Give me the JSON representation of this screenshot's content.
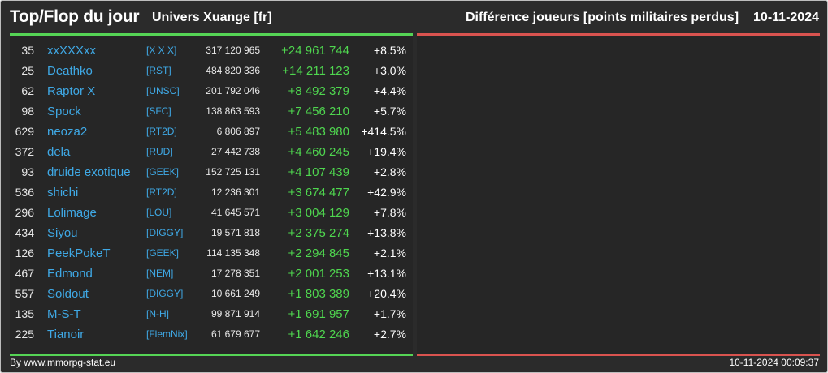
{
  "header": {
    "title": "Top/Flop du jour",
    "universe": "Univers Xuange [fr]",
    "category": "Différence joueurs [points militaires perdus]",
    "date": "10-11-2024"
  },
  "top_rows": [
    {
      "rank": "35",
      "name": "xxXXXxx",
      "alliance": "[X X X]",
      "points": "317 120 965",
      "diff": "+24 961 744",
      "pct": "+8.5%"
    },
    {
      "rank": "25",
      "name": "Deathko",
      "alliance": "[RST]",
      "points": "484 820 336",
      "diff": "+14 211 123",
      "pct": "+3.0%"
    },
    {
      "rank": "62",
      "name": "Raptor X",
      "alliance": "[UNSC]",
      "points": "201 792 046",
      "diff": "+8 492 379",
      "pct": "+4.4%"
    },
    {
      "rank": "98",
      "name": "Spock",
      "alliance": "[SFC]",
      "points": "138 863 593",
      "diff": "+7 456 210",
      "pct": "+5.7%"
    },
    {
      "rank": "629",
      "name": "neoza2",
      "alliance": "[RT2D]",
      "points": "6 806 897",
      "diff": "+5 483 980",
      "pct": "+414.5%"
    },
    {
      "rank": "372",
      "name": "dela",
      "alliance": "[RUD]",
      "points": "27 442 738",
      "diff": "+4 460 245",
      "pct": "+19.4%"
    },
    {
      "rank": "93",
      "name": "druide exotique",
      "alliance": "[GEEK]",
      "points": "152 725 131",
      "diff": "+4 107 439",
      "pct": "+2.8%"
    },
    {
      "rank": "536",
      "name": "shichi",
      "alliance": "[RT2D]",
      "points": "12 236 301",
      "diff": "+3 674 477",
      "pct": "+42.9%"
    },
    {
      "rank": "296",
      "name": "Lolimage",
      "alliance": "[LOU]",
      "points": "41 645 571",
      "diff": "+3 004 129",
      "pct": "+7.8%"
    },
    {
      "rank": "434",
      "name": "Siyou",
      "alliance": "[DIGGY]",
      "points": "19 571 818",
      "diff": "+2 375 274",
      "pct": "+13.8%"
    },
    {
      "rank": "126",
      "name": "PeekPokeT",
      "alliance": "[GEEK]",
      "points": "114 135 348",
      "diff": "+2 294 845",
      "pct": "+2.1%"
    },
    {
      "rank": "467",
      "name": "Edmond",
      "alliance": "[NEM]",
      "points": "17 278 351",
      "diff": "+2 001 253",
      "pct": "+13.1%"
    },
    {
      "rank": "557",
      "name": "Soldout",
      "alliance": "[DIGGY]",
      "points": "10 661 249",
      "diff": "+1 803 389",
      "pct": "+20.4%"
    },
    {
      "rank": "135",
      "name": "M-S-T",
      "alliance": "[N-H]",
      "points": "99 871 914",
      "diff": "+1 691 957",
      "pct": "+1.7%"
    },
    {
      "rank": "225",
      "name": "Tianoir",
      "alliance": "[FlemNix]",
      "points": "61 679 677",
      "diff": "+1 642 246",
      "pct": "+2.7%"
    }
  ],
  "flop_rows": [],
  "footer": {
    "source": "By www.mmorpg-stat.eu",
    "timestamp": "10-11-2024 00:09:37"
  },
  "colors": {
    "top_accent": "#55d455",
    "flop_accent": "#d9534f",
    "link": "#3fa9e6",
    "gain": "#4fd64f"
  }
}
